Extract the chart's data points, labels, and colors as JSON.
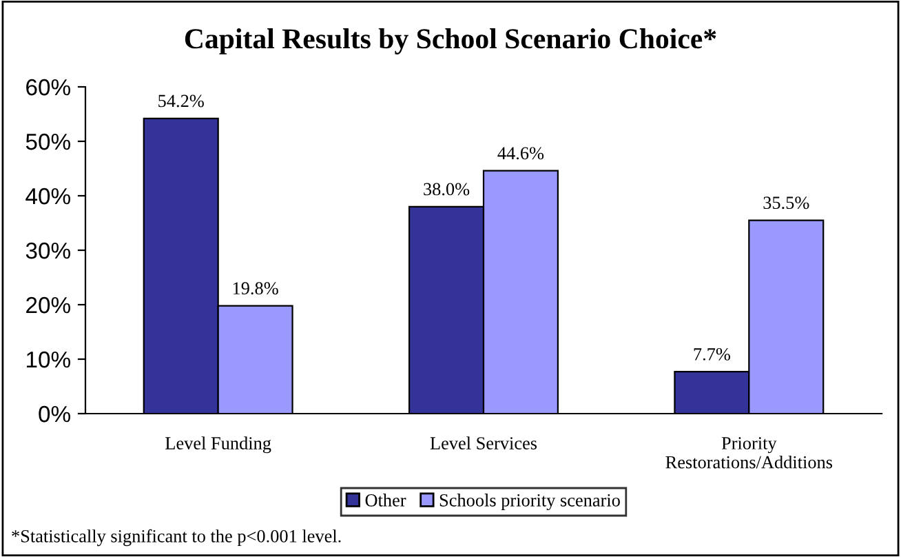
{
  "chart_data": {
    "type": "bar",
    "title": "Capital Results by School Scenario Choice*",
    "categories": [
      "Level Funding",
      "Level Services",
      "Priority Restorations/Additions"
    ],
    "series": [
      {
        "name": "Other",
        "color": "#333399",
        "values": [
          54.2,
          38.0,
          7.7
        ],
        "value_labels": [
          "54.2%",
          "38.0%",
          "7.7%"
        ]
      },
      {
        "name": "Schools priority scenario",
        "color": "#9999ff",
        "values": [
          19.8,
          44.6,
          35.5
        ],
        "value_labels": [
          "19.8%",
          "44.6%",
          "35.5%"
        ]
      }
    ],
    "ylim": [
      0,
      60
    ],
    "yticks": [
      {
        "value": 0,
        "label": "0%"
      },
      {
        "value": 10,
        "label": "10%"
      },
      {
        "value": 20,
        "label": "20%"
      },
      {
        "value": 30,
        "label": "30%"
      },
      {
        "value": 40,
        "label": "40%"
      },
      {
        "value": 50,
        "label": "50%"
      },
      {
        "value": 60,
        "label": "60%"
      }
    ],
    "grid": false,
    "legend": "bottom",
    "annotations": [
      "*Statistically significant to the p<0.001 level."
    ]
  }
}
